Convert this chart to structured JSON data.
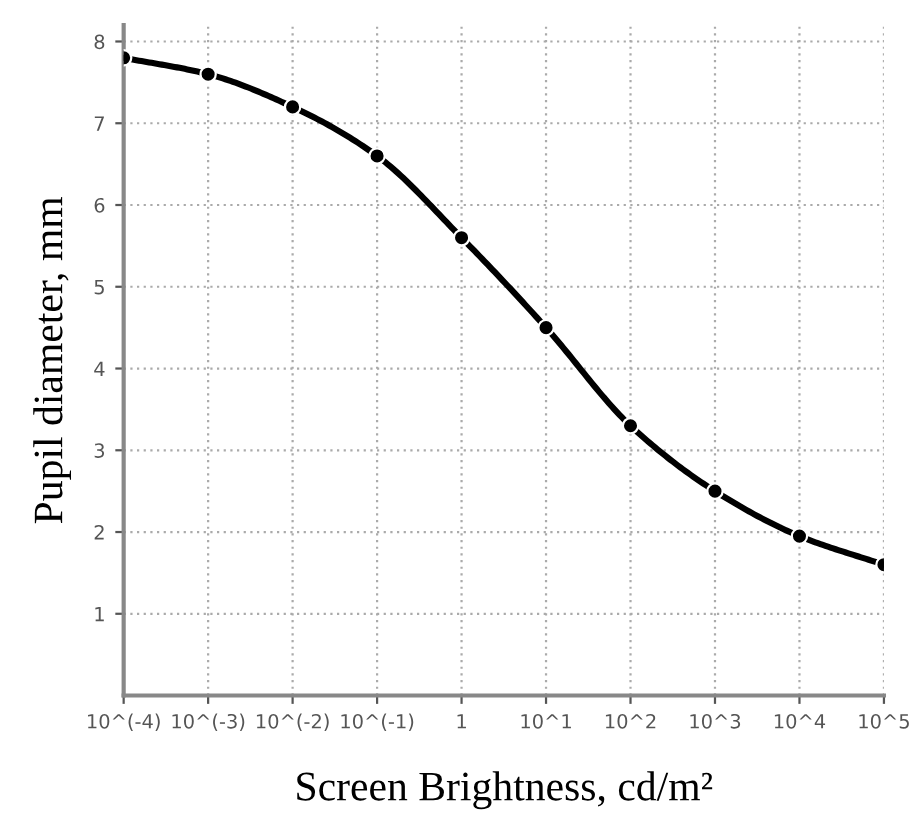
{
  "chart_data": {
    "type": "line",
    "xlabel": "Screen Brightness, cd/m²",
    "ylabel": "Pupil diameter, mm",
    "categories": [
      "10^(-4)",
      "10^(-3)",
      "10^(-2)",
      "10^(-1)",
      "1",
      "10^1",
      "10^2",
      "10^3",
      "10^4",
      "10^5"
    ],
    "series": [
      {
        "color": "#000000",
        "values": [
          7.8,
          7.6,
          7.2,
          6.6,
          5.6,
          4.5,
          3.3,
          2.5,
          1.95,
          1.6
        ]
      }
    ],
    "ylim": [
      0,
      8.2
    ],
    "yticks": [
      1,
      2,
      3,
      4,
      5,
      6,
      7,
      8
    ],
    "grid": true,
    "marker": "circle",
    "line_style": "solid",
    "legend": false
  }
}
